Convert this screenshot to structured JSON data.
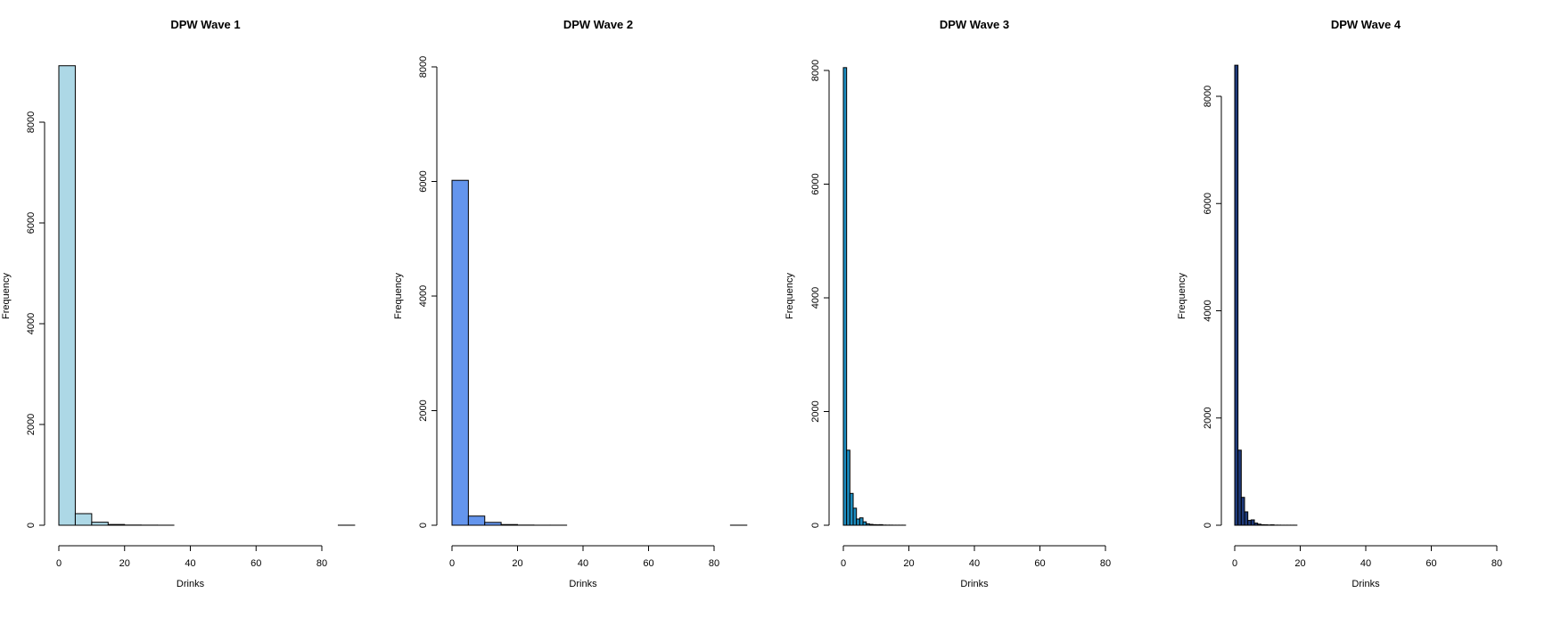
{
  "chart_data": [
    {
      "type": "bar",
      "title": "DPW Wave 1",
      "xlabel": "Drinks",
      "ylabel": "Frequency",
      "xlim": [
        0,
        90
      ],
      "ylim": [
        0,
        9000
      ],
      "xticks": [
        0,
        20,
        40,
        60,
        80
      ],
      "yticks": [
        0,
        2000,
        4000,
        6000,
        8000
      ],
      "fill": "#add8e6",
      "bins": [
        {
          "x0": 0,
          "x1": 5,
          "count": 9120
        },
        {
          "x0": 5,
          "x1": 10,
          "count": 230
        },
        {
          "x0": 10,
          "x1": 15,
          "count": 60
        },
        {
          "x0": 15,
          "x1": 20,
          "count": 15
        },
        {
          "x0": 20,
          "x1": 25,
          "count": 4
        },
        {
          "x0": 25,
          "x1": 30,
          "count": 2
        },
        {
          "x0": 30,
          "x1": 35,
          "count": 1
        },
        {
          "x0": 35,
          "x1": 40,
          "count": 0
        },
        {
          "x0": 40,
          "x1": 45,
          "count": 0
        },
        {
          "x0": 45,
          "x1": 50,
          "count": 0
        },
        {
          "x0": 50,
          "x1": 55,
          "count": 0
        },
        {
          "x0": 55,
          "x1": 60,
          "count": 0
        },
        {
          "x0": 60,
          "x1": 65,
          "count": 0
        },
        {
          "x0": 65,
          "x1": 70,
          "count": 0
        },
        {
          "x0": 70,
          "x1": 75,
          "count": 0
        },
        {
          "x0": 75,
          "x1": 80,
          "count": 0
        },
        {
          "x0": 80,
          "x1": 85,
          "count": 0
        },
        {
          "x0": 85,
          "x1": 90,
          "count": 1
        }
      ]
    },
    {
      "type": "bar",
      "title": "DPW Wave 2",
      "xlabel": "Drinks",
      "ylabel": "Frequency",
      "xlim": [
        0,
        90
      ],
      "ylim": [
        0,
        8000
      ],
      "xticks": [
        0,
        20,
        40,
        60,
        80
      ],
      "yticks": [
        0,
        2000,
        4000,
        6000,
        8000
      ],
      "fill": "#6495ed",
      "bins": [
        {
          "x0": 0,
          "x1": 5,
          "count": 6020
        },
        {
          "x0": 5,
          "x1": 10,
          "count": 160
        },
        {
          "x0": 10,
          "x1": 15,
          "count": 50
        },
        {
          "x0": 15,
          "x1": 20,
          "count": 12
        },
        {
          "x0": 20,
          "x1": 25,
          "count": 3
        },
        {
          "x0": 25,
          "x1": 30,
          "count": 1
        },
        {
          "x0": 30,
          "x1": 35,
          "count": 1
        },
        {
          "x0": 35,
          "x1": 40,
          "count": 0
        },
        {
          "x0": 40,
          "x1": 45,
          "count": 0
        },
        {
          "x0": 45,
          "x1": 50,
          "count": 0
        },
        {
          "x0": 50,
          "x1": 55,
          "count": 0
        },
        {
          "x0": 55,
          "x1": 60,
          "count": 0
        },
        {
          "x0": 60,
          "x1": 65,
          "count": 0
        },
        {
          "x0": 65,
          "x1": 70,
          "count": 0
        },
        {
          "x0": 70,
          "x1": 75,
          "count": 0
        },
        {
          "x0": 75,
          "x1": 80,
          "count": 0
        },
        {
          "x0": 80,
          "x1": 85,
          "count": 0
        },
        {
          "x0": 85,
          "x1": 90,
          "count": 1
        }
      ]
    },
    {
      "type": "bar",
      "title": "DPW Wave 3",
      "xlabel": "Drinks",
      "ylabel": "Frequency",
      "xlim": [
        0,
        80
      ],
      "ylim": [
        0,
        8000
      ],
      "xticks": [
        0,
        20,
        40,
        60,
        80
      ],
      "yticks": [
        0,
        2000,
        4000,
        6000,
        8000
      ],
      "fill": "#1c8cbf",
      "bins": [
        {
          "x0": 0,
          "x1": 1,
          "count": 8050
        },
        {
          "x0": 1,
          "x1": 2,
          "count": 1320
        },
        {
          "x0": 2,
          "x1": 3,
          "count": 560
        },
        {
          "x0": 3,
          "x1": 4,
          "count": 300
        },
        {
          "x0": 4,
          "x1": 5,
          "count": 110
        },
        {
          "x0": 5,
          "x1": 6,
          "count": 130
        },
        {
          "x0": 6,
          "x1": 7,
          "count": 60
        },
        {
          "x0": 7,
          "x1": 8,
          "count": 25
        },
        {
          "x0": 8,
          "x1": 9,
          "count": 15
        },
        {
          "x0": 9,
          "x1": 10,
          "count": 10
        },
        {
          "x0": 10,
          "x1": 11,
          "count": 8
        },
        {
          "x0": 11,
          "x1": 12,
          "count": 10
        },
        {
          "x0": 12,
          "x1": 13,
          "count": 3
        },
        {
          "x0": 13,
          "x1": 14,
          "count": 2
        },
        {
          "x0": 14,
          "x1": 15,
          "count": 2
        },
        {
          "x0": 15,
          "x1": 16,
          "count": 1
        },
        {
          "x0": 16,
          "x1": 17,
          "count": 1
        },
        {
          "x0": 17,
          "x1": 18,
          "count": 1
        },
        {
          "x0": 18,
          "x1": 19,
          "count": 1
        }
      ]
    },
    {
      "type": "bar",
      "title": "DPW Wave 4",
      "xlabel": "Drinks",
      "ylabel": "Frequency",
      "xlim": [
        0,
        80
      ],
      "ylim": [
        0,
        8600
      ],
      "xticks": [
        0,
        20,
        40,
        60,
        80
      ],
      "yticks": [
        0,
        2000,
        4000,
        6000,
        8000
      ],
      "fill": "#1f3a7a",
      "bins": [
        {
          "x0": 0,
          "x1": 1,
          "count": 8580
        },
        {
          "x0": 1,
          "x1": 2,
          "count": 1400
        },
        {
          "x0": 2,
          "x1": 3,
          "count": 520
        },
        {
          "x0": 3,
          "x1": 4,
          "count": 250
        },
        {
          "x0": 4,
          "x1": 5,
          "count": 90
        },
        {
          "x0": 5,
          "x1": 6,
          "count": 100
        },
        {
          "x0": 6,
          "x1": 7,
          "count": 40
        },
        {
          "x0": 7,
          "x1": 8,
          "count": 20
        },
        {
          "x0": 8,
          "x1": 9,
          "count": 10
        },
        {
          "x0": 9,
          "x1": 10,
          "count": 8
        },
        {
          "x0": 10,
          "x1": 11,
          "count": 5
        },
        {
          "x0": 11,
          "x1": 12,
          "count": 8
        },
        {
          "x0": 12,
          "x1": 13,
          "count": 2
        },
        {
          "x0": 13,
          "x1": 14,
          "count": 2
        },
        {
          "x0": 14,
          "x1": 15,
          "count": 1
        },
        {
          "x0": 15,
          "x1": 16,
          "count": 1
        },
        {
          "x0": 16,
          "x1": 17,
          "count": 1
        },
        {
          "x0": 17,
          "x1": 18,
          "count": 1
        },
        {
          "x0": 18,
          "x1": 19,
          "count": 1
        }
      ]
    }
  ]
}
